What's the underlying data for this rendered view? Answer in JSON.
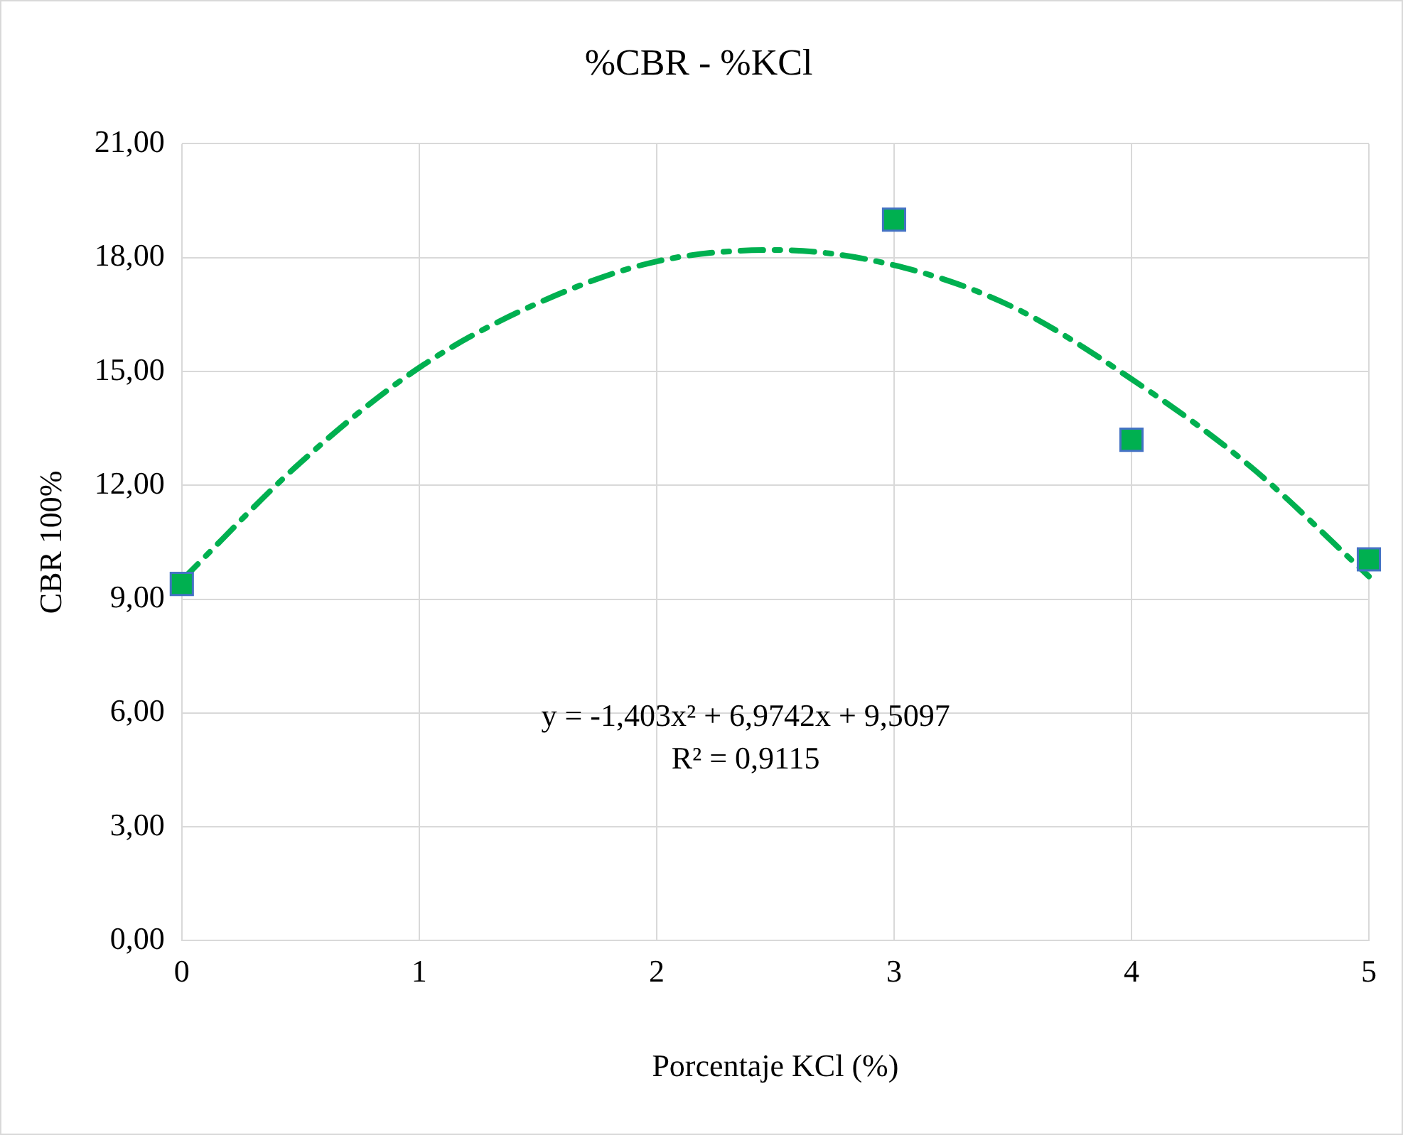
{
  "chart_data": {
    "type": "scatter",
    "title": "%CBR - %KCl",
    "xlabel": "Porcentaje KCl (%)",
    "ylabel": "CBR 100%",
    "series": [
      {
        "color": "#00b050",
        "x": [
          0,
          3,
          4,
          5
        ],
        "values": [
          9.4,
          19.0,
          13.2,
          10.05
        ],
        "marker": "square"
      },
      {
        "type": "line",
        "color": "#00b050",
        "x": [
          0,
          0.5,
          1,
          1.5,
          2,
          2.5,
          3,
          3.5,
          4,
          4.5,
          5
        ],
        "values": [
          9.5,
          12.6,
          15.1,
          16.8,
          17.9,
          18.2,
          17.8,
          16.7,
          14.8,
          12.5,
          9.6
        ],
        "marker": "none",
        "line_style": "dashed"
      }
    ],
    "xlim": [
      0,
      5
    ],
    "xticks": [
      0,
      1,
      2,
      3,
      4,
      5
    ],
    "ylim": [
      0,
      21
    ],
    "yticks": [
      {
        "value": 0,
        "label": "0,00"
      },
      {
        "value": 3,
        "label": "3,00"
      },
      {
        "value": 6,
        "label": "6,00"
      },
      {
        "value": 9,
        "label": "9,00"
      },
      {
        "value": 12,
        "label": "12,00"
      },
      {
        "value": 15,
        "label": "15,00"
      },
      {
        "value": 18,
        "label": "18,00"
      },
      {
        "value": 21,
        "label": "21,00"
      }
    ],
    "grid": true,
    "legend": false,
    "annotations": [
      "y = -1,403x² + 6,9742x + 9,5097",
      "R² = 0,9115"
    ]
  }
}
